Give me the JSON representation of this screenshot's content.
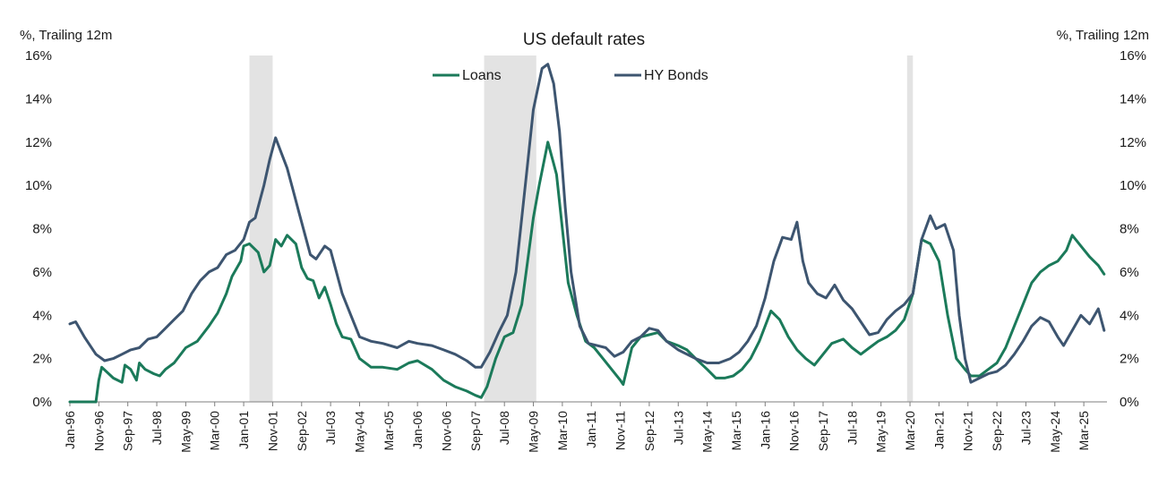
{
  "chart_data": {
    "type": "line",
    "title": "US default rates",
    "y_left_label": "%, Trailing 12m",
    "y_right_label": "%, Trailing 12m",
    "ylim": [
      0,
      16
    ],
    "y_ticks": [
      "0%",
      "2%",
      "4%",
      "6%",
      "8%",
      "10%",
      "12%",
      "14%",
      "16%"
    ],
    "x_tick_labels": [
      "Jan-96",
      "Nov-96",
      "Sep-97",
      "Jul-98",
      "May-99",
      "Mar-00",
      "Jan-01",
      "Nov-01",
      "Sep-02",
      "Jul-03",
      "May-04",
      "Mar-05",
      "Jan-06",
      "Nov-06",
      "Sep-07",
      "Jul-08",
      "May-09",
      "Mar-10",
      "Jan-11",
      "Nov-11",
      "Sep-12",
      "Jul-13",
      "May-14",
      "Mar-15",
      "Jan-16",
      "Nov-16",
      "Sep-17",
      "Jul-18",
      "May-19",
      "Mar-20",
      "Jan-21",
      "Nov-21",
      "Sep-22",
      "Jul-23",
      "May-24",
      "Mar-25"
    ],
    "grid": false,
    "legend_position": "top-center",
    "recession_shading": [
      {
        "start": "Mar-01",
        "end": "Nov-01"
      },
      {
        "start": "Dec-07",
        "end": "Jun-09"
      },
      {
        "start": "Feb-20",
        "end": "Apr-20"
      }
    ],
    "series": [
      {
        "name": "Loans",
        "color": "#1b7a5a",
        "points": [
          [
            "Jan-96",
            0.0
          ],
          [
            "Jun-96",
            0.0
          ],
          [
            "Oct-96",
            0.0
          ],
          [
            "Nov-96",
            1.0
          ],
          [
            "Dec-96",
            1.6
          ],
          [
            "Apr-97",
            1.1
          ],
          [
            "Jul-97",
            0.9
          ],
          [
            "Aug-97",
            1.7
          ],
          [
            "Oct-97",
            1.5
          ],
          [
            "Dec-97",
            1.0
          ],
          [
            "Jan-98",
            1.8
          ],
          [
            "Mar-98",
            1.5
          ],
          [
            "Jun-98",
            1.3
          ],
          [
            "Aug-98",
            1.2
          ],
          [
            "Oct-98",
            1.5
          ],
          [
            "Jan-99",
            1.8
          ],
          [
            "May-99",
            2.5
          ],
          [
            "Sep-99",
            2.8
          ],
          [
            "Jan-00",
            3.5
          ],
          [
            "Apr-00",
            4.1
          ],
          [
            "Jul-00",
            5.0
          ],
          [
            "Sep-00",
            5.8
          ],
          [
            "Dec-00",
            6.5
          ],
          [
            "Jan-01",
            7.2
          ],
          [
            "Mar-01",
            7.3
          ],
          [
            "Jun-01",
            6.9
          ],
          [
            "Aug-01",
            6.0
          ],
          [
            "Oct-01",
            6.3
          ],
          [
            "Dec-01",
            7.5
          ],
          [
            "Feb-02",
            7.2
          ],
          [
            "Apr-02",
            7.7
          ],
          [
            "Jul-02",
            7.3
          ],
          [
            "Sep-02",
            6.2
          ],
          [
            "Nov-02",
            5.7
          ],
          [
            "Jan-03",
            5.6
          ],
          [
            "Mar-03",
            4.8
          ],
          [
            "May-03",
            5.3
          ],
          [
            "Jul-03",
            4.5
          ],
          [
            "Sep-03",
            3.6
          ],
          [
            "Nov-03",
            3.0
          ],
          [
            "Feb-04",
            2.9
          ],
          [
            "May-04",
            2.0
          ],
          [
            "Sep-04",
            1.6
          ],
          [
            "Jan-05",
            1.6
          ],
          [
            "Jun-05",
            1.5
          ],
          [
            "Oct-05",
            1.8
          ],
          [
            "Jan-06",
            1.9
          ],
          [
            "Jun-06",
            1.5
          ],
          [
            "Oct-06",
            1.0
          ],
          [
            "Feb-07",
            0.7
          ],
          [
            "Jun-07",
            0.5
          ],
          [
            "Sep-07",
            0.3
          ],
          [
            "Nov-07",
            0.2
          ],
          [
            "Jan-08",
            0.7
          ],
          [
            "Apr-08",
            2.0
          ],
          [
            "Jul-08",
            3.0
          ],
          [
            "Oct-08",
            3.2
          ],
          [
            "Jan-09",
            4.5
          ],
          [
            "Mar-09",
            6.5
          ],
          [
            "May-09",
            8.5
          ],
          [
            "Jul-09",
            10.0
          ],
          [
            "Oct-09",
            12.0
          ],
          [
            "Dec-09",
            11.0
          ],
          [
            "Jan-10",
            10.5
          ],
          [
            "Mar-10",
            8.0
          ],
          [
            "May-10",
            5.5
          ],
          [
            "Aug-10",
            4.0
          ],
          [
            "Nov-10",
            2.8
          ],
          [
            "Feb-11",
            2.5
          ],
          [
            "May-11",
            2.0
          ],
          [
            "Aug-11",
            1.5
          ],
          [
            "Nov-11",
            1.0
          ],
          [
            "Dec-11",
            0.8
          ],
          [
            "Mar-12",
            2.5
          ],
          [
            "Jun-12",
            3.0
          ],
          [
            "Sep-12",
            3.1
          ],
          [
            "Dec-12",
            3.2
          ],
          [
            "Mar-13",
            2.8
          ],
          [
            "Jul-13",
            2.6
          ],
          [
            "Oct-13",
            2.4
          ],
          [
            "Jan-14",
            2.0
          ],
          [
            "May-14",
            1.5
          ],
          [
            "Aug-14",
            1.1
          ],
          [
            "Nov-14",
            1.1
          ],
          [
            "Feb-15",
            1.2
          ],
          [
            "May-15",
            1.5
          ],
          [
            "Aug-15",
            2.0
          ],
          [
            "Nov-15",
            2.8
          ],
          [
            "Jan-16",
            3.5
          ],
          [
            "Mar-16",
            4.2
          ],
          [
            "Jun-16",
            3.8
          ],
          [
            "Sep-16",
            3.0
          ],
          [
            "Dec-16",
            2.4
          ],
          [
            "Mar-17",
            2.0
          ],
          [
            "Jun-17",
            1.7
          ],
          [
            "Sep-17",
            2.2
          ],
          [
            "Dec-17",
            2.7
          ],
          [
            "Apr-18",
            2.9
          ],
          [
            "Jul-18",
            2.5
          ],
          [
            "Oct-18",
            2.2
          ],
          [
            "Jan-19",
            2.5
          ],
          [
            "Apr-19",
            2.8
          ],
          [
            "Jul-19",
            3.0
          ],
          [
            "Oct-19",
            3.3
          ],
          [
            "Jan-20",
            3.8
          ],
          [
            "Apr-20",
            5.0
          ],
          [
            "Jul-20",
            7.5
          ],
          [
            "Oct-20",
            7.3
          ],
          [
            "Jan-21",
            6.5
          ],
          [
            "Apr-21",
            4.0
          ],
          [
            "Jul-21",
            2.0
          ],
          [
            "Oct-21",
            1.5
          ],
          [
            "Dec-21",
            1.2
          ],
          [
            "Mar-22",
            1.2
          ],
          [
            "Jun-22",
            1.5
          ],
          [
            "Sep-22",
            1.8
          ],
          [
            "Dec-22",
            2.5
          ],
          [
            "Mar-23",
            3.5
          ],
          [
            "Jun-23",
            4.5
          ],
          [
            "Sep-23",
            5.5
          ],
          [
            "Dec-23",
            6.0
          ],
          [
            "Mar-24",
            6.3
          ],
          [
            "Jun-24",
            6.5
          ],
          [
            "Sep-24",
            7.0
          ],
          [
            "Nov-24",
            7.7
          ],
          [
            "Feb-25",
            7.2
          ],
          [
            "May-25",
            6.7
          ],
          [
            "Aug-25",
            6.3
          ],
          [
            "Oct-25",
            5.9
          ]
        ]
      },
      {
        "name": "HY Bonds",
        "color": "#3d5570",
        "points": [
          [
            "Jan-96",
            3.6
          ],
          [
            "Mar-96",
            3.7
          ],
          [
            "Jun-96",
            3.0
          ],
          [
            "Aug-96",
            2.6
          ],
          [
            "Oct-96",
            2.2
          ],
          [
            "Jan-97",
            1.9
          ],
          [
            "Apr-97",
            2.0
          ],
          [
            "Jul-97",
            2.2
          ],
          [
            "Oct-97",
            2.4
          ],
          [
            "Jan-98",
            2.5
          ],
          [
            "Apr-98",
            2.9
          ],
          [
            "Jul-98",
            3.0
          ],
          [
            "Oct-98",
            3.4
          ],
          [
            "Jan-99",
            3.8
          ],
          [
            "Apr-99",
            4.2
          ],
          [
            "Jul-99",
            5.0
          ],
          [
            "Oct-99",
            5.6
          ],
          [
            "Jan-00",
            6.0
          ],
          [
            "Apr-00",
            6.2
          ],
          [
            "Jul-00",
            6.8
          ],
          [
            "Oct-00",
            7.0
          ],
          [
            "Jan-01",
            7.5
          ],
          [
            "Mar-01",
            8.3
          ],
          [
            "May-01",
            8.5
          ],
          [
            "Aug-01",
            10.0
          ],
          [
            "Oct-01",
            11.2
          ],
          [
            "Dec-01",
            12.2
          ],
          [
            "Feb-02",
            11.5
          ],
          [
            "Apr-02",
            10.8
          ],
          [
            "Jun-02",
            9.8
          ],
          [
            "Aug-02",
            8.8
          ],
          [
            "Oct-02",
            7.8
          ],
          [
            "Dec-02",
            6.8
          ],
          [
            "Feb-03",
            6.6
          ],
          [
            "May-03",
            7.2
          ],
          [
            "Jul-03",
            7.0
          ],
          [
            "Sep-03",
            6.0
          ],
          [
            "Nov-03",
            5.0
          ],
          [
            "Feb-04",
            4.0
          ],
          [
            "May-04",
            3.0
          ],
          [
            "Sep-04",
            2.8
          ],
          [
            "Jan-05",
            2.7
          ],
          [
            "Jun-05",
            2.5
          ],
          [
            "Oct-05",
            2.8
          ],
          [
            "Jan-06",
            2.7
          ],
          [
            "Jun-06",
            2.6
          ],
          [
            "Oct-06",
            2.4
          ],
          [
            "Feb-07",
            2.2
          ],
          [
            "Jun-07",
            1.9
          ],
          [
            "Sep-07",
            1.6
          ],
          [
            "Nov-07",
            1.6
          ],
          [
            "Feb-08",
            2.3
          ],
          [
            "May-08",
            3.2
          ],
          [
            "Aug-08",
            4.0
          ],
          [
            "Nov-08",
            6.0
          ],
          [
            "Jan-09",
            8.5
          ],
          [
            "Mar-09",
            11.0
          ],
          [
            "May-09",
            13.5
          ],
          [
            "Aug-09",
            15.4
          ],
          [
            "Oct-09",
            15.6
          ],
          [
            "Dec-09",
            14.7
          ],
          [
            "Feb-10",
            12.5
          ],
          [
            "Apr-10",
            9.0
          ],
          [
            "Jun-10",
            6.0
          ],
          [
            "Sep-10",
            3.5
          ],
          [
            "Dec-10",
            2.7
          ],
          [
            "Mar-11",
            2.6
          ],
          [
            "Jun-11",
            2.5
          ],
          [
            "Sep-11",
            2.1
          ],
          [
            "Dec-11",
            2.3
          ],
          [
            "Mar-12",
            2.8
          ],
          [
            "Jun-12",
            3.0
          ],
          [
            "Sep-12",
            3.4
          ],
          [
            "Dec-12",
            3.3
          ],
          [
            "Mar-13",
            2.8
          ],
          [
            "Jul-13",
            2.4
          ],
          [
            "Oct-13",
            2.2
          ],
          [
            "Jan-14",
            2.0
          ],
          [
            "May-14",
            1.8
          ],
          [
            "Sep-14",
            1.8
          ],
          [
            "Jan-15",
            2.0
          ],
          [
            "Apr-15",
            2.3
          ],
          [
            "Jul-15",
            2.8
          ],
          [
            "Oct-15",
            3.5
          ],
          [
            "Jan-16",
            4.8
          ],
          [
            "Apr-16",
            6.5
          ],
          [
            "Jul-16",
            7.6
          ],
          [
            "Oct-16",
            7.5
          ],
          [
            "Dec-16",
            8.3
          ],
          [
            "Feb-17",
            6.5
          ],
          [
            "Apr-17",
            5.5
          ],
          [
            "Jul-17",
            5.0
          ],
          [
            "Oct-17",
            4.8
          ],
          [
            "Jan-18",
            5.4
          ],
          [
            "Apr-18",
            4.7
          ],
          [
            "Jul-18",
            4.3
          ],
          [
            "Oct-18",
            3.7
          ],
          [
            "Jan-19",
            3.1
          ],
          [
            "Apr-19",
            3.2
          ],
          [
            "Jul-19",
            3.8
          ],
          [
            "Oct-19",
            4.2
          ],
          [
            "Jan-20",
            4.5
          ],
          [
            "Apr-20",
            5.0
          ],
          [
            "Jul-20",
            7.5
          ],
          [
            "Oct-20",
            8.6
          ],
          [
            "Dec-20",
            8.0
          ],
          [
            "Mar-21",
            8.2
          ],
          [
            "Jun-21",
            7.0
          ],
          [
            "Aug-21",
            4.0
          ],
          [
            "Oct-21",
            2.0
          ],
          [
            "Dec-21",
            0.9
          ],
          [
            "Mar-22",
            1.1
          ],
          [
            "Jun-22",
            1.3
          ],
          [
            "Sep-22",
            1.4
          ],
          [
            "Dec-22",
            1.7
          ],
          [
            "Mar-23",
            2.2
          ],
          [
            "Jun-23",
            2.8
          ],
          [
            "Sep-23",
            3.5
          ],
          [
            "Dec-23",
            3.9
          ],
          [
            "Mar-24",
            3.7
          ],
          [
            "Jun-24",
            3.0
          ],
          [
            "Aug-24",
            2.6
          ],
          [
            "Nov-24",
            3.3
          ],
          [
            "Feb-25",
            4.0
          ],
          [
            "May-25",
            3.6
          ],
          [
            "Aug-25",
            4.3
          ],
          [
            "Oct-25",
            3.3
          ]
        ]
      }
    ]
  }
}
